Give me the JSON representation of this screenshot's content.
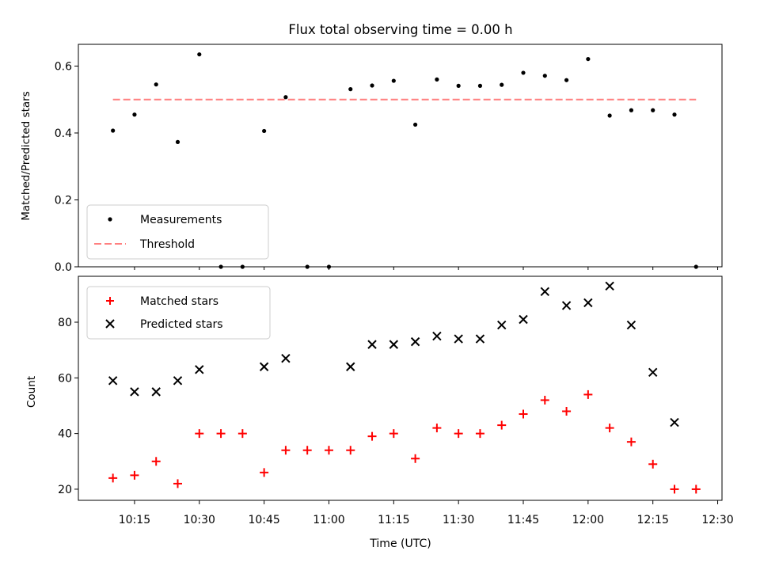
{
  "chart_data": [
    {
      "type": "scatter",
      "title": "Flux total observing time = 0.00 h",
      "xlabel": "",
      "ylabel": "Matched/Predicted stars",
      "ylim": [
        0,
        0.665
      ],
      "yticks": [
        0.0,
        0.2,
        0.4,
        0.6
      ],
      "ytick_labels": [
        "0.0",
        "0.2",
        "0.4",
        "0.6"
      ],
      "legend": {
        "position": "lower-left",
        "entries": [
          "Measurements",
          "Threshold"
        ]
      },
      "series": [
        {
          "name": "Measurements",
          "marker": "dot",
          "color": "#000000",
          "x": [
            "10:10",
            "10:15",
            "10:20",
            "10:25",
            "10:30",
            "10:35",
            "10:40",
            "10:45",
            "10:50",
            "10:55",
            "11:00",
            "11:05",
            "11:10",
            "11:15",
            "11:20",
            "11:25",
            "11:30",
            "11:35",
            "11:40",
            "11:45",
            "11:50",
            "11:55",
            "12:00",
            "12:05",
            "12:10",
            "12:15",
            "12:20",
            "12:25"
          ],
          "values": [
            0.407,
            0.455,
            0.545,
            0.373,
            0.635,
            0.0,
            0.0,
            0.406,
            0.507,
            0.0,
            0.0,
            0.531,
            0.542,
            0.556,
            0.425,
            0.56,
            0.541,
            0.541,
            0.544,
            0.58,
            0.571,
            0.558,
            0.621,
            0.452,
            0.468,
            0.468,
            0.455,
            0.0
          ]
        }
      ],
      "threshold": {
        "name": "Threshold",
        "value": 0.5,
        "x_range": [
          "10:10",
          "12:25"
        ],
        "color": "#ff8080",
        "style": "dashed"
      }
    },
    {
      "type": "scatter",
      "xlabel": "Time (UTC)",
      "ylabel": "Count",
      "ylim": [
        16,
        96.5
      ],
      "yticks": [
        20,
        40,
        60,
        80
      ],
      "ytick_labels": [
        "20",
        "40",
        "60",
        "80"
      ],
      "xlim": [
        "10:02",
        "12:31"
      ],
      "xticks": [
        "10:15",
        "10:30",
        "10:45",
        "11:00",
        "11:15",
        "11:30",
        "11:45",
        "12:00",
        "12:15",
        "12:30"
      ],
      "xtick_labels": [
        "10:15",
        "10:30",
        "10:45",
        "11:00",
        "11:15",
        "11:30",
        "11:45",
        "12:00",
        "12:15",
        "12:30"
      ],
      "legend": {
        "position": "upper-left",
        "entries": [
          "Matched stars",
          "Predicted stars"
        ]
      },
      "series": [
        {
          "name": "Matched stars",
          "marker": "plus",
          "color": "#ff0000",
          "x": [
            "10:10",
            "10:15",
            "10:20",
            "10:25",
            "10:30",
            "10:35",
            "10:40",
            "10:45",
            "10:50",
            "10:55",
            "11:00",
            "11:05",
            "11:10",
            "11:15",
            "11:20",
            "11:25",
            "11:30",
            "11:35",
            "11:40",
            "11:45",
            "11:50",
            "11:55",
            "12:00",
            "12:05",
            "12:10",
            "12:15",
            "12:20",
            "12:25"
          ],
          "values": [
            24,
            25,
            30,
            22,
            40,
            40,
            40,
            26,
            34,
            34,
            34,
            34,
            39,
            40,
            31,
            42,
            40,
            40,
            43,
            47,
            52,
            48,
            54,
            42,
            37,
            29,
            20,
            20
          ]
        },
        {
          "name": "Predicted stars",
          "marker": "x",
          "color": "#000000",
          "x": [
            "10:10",
            "10:15",
            "10:20",
            "10:25",
            "10:30",
            "10:45",
            "10:50",
            "11:05",
            "11:10",
            "11:15",
            "11:20",
            "11:25",
            "11:30",
            "11:35",
            "11:40",
            "11:45",
            "11:50",
            "11:55",
            "12:00",
            "12:05",
            "12:10",
            "12:15",
            "12:20"
          ],
          "values": [
            59,
            55,
            55,
            59,
            63,
            64,
            67,
            64,
            72,
            72,
            73,
            75,
            74,
            74,
            79,
            81,
            91,
            86,
            87,
            93,
            79,
            62,
            44
          ]
        }
      ]
    }
  ]
}
